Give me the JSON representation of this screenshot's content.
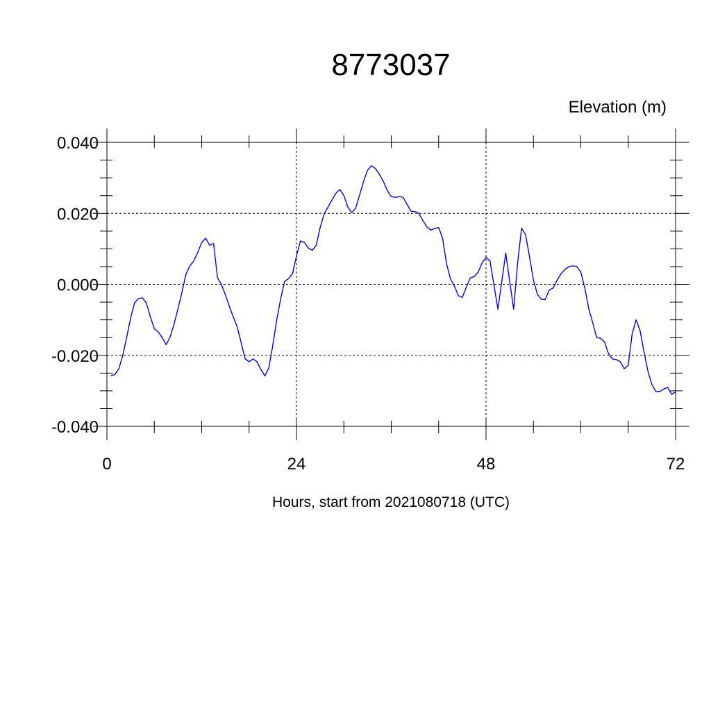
{
  "chart_data": {
    "type": "line",
    "title": "8773037",
    "ylabel": "Elevation (m)",
    "xlabel": "Hours, start from 2021080718 (UTC)",
    "xlim": [
      0,
      72
    ],
    "ylim": [
      -0.04,
      0.04
    ],
    "xticks": [
      0,
      24,
      48,
      72
    ],
    "xtick_labels": [
      "0",
      "24",
      "48",
      "72"
    ],
    "xminor_step": 6,
    "yticks": [
      0.04,
      0.02,
      0.0,
      -0.02,
      -0.04
    ],
    "ytick_labels": [
      "0.040",
      "0.020",
      "0.000",
      "-0.020",
      "-0.040"
    ],
    "yminor_step": 0.005,
    "grid": true,
    "series": [
      {
        "color": "#0000ee",
        "x": [
          0.5,
          1,
          1.5,
          2,
          2.5,
          3,
          3.5,
          4,
          4.5,
          5,
          5.5,
          6,
          6.5,
          7,
          7.5,
          8,
          8.5,
          9,
          9.5,
          10,
          10.5,
          11,
          11.5,
          12,
          12.5,
          13,
          13.5,
          14,
          14.5,
          15,
          15.5,
          16,
          16.5,
          17,
          17.5,
          18,
          18.5,
          19,
          19.5,
          20,
          20.5,
          21,
          21.5,
          22,
          22.5,
          23,
          23.5,
          24,
          24.5,
          25,
          25.5,
          26,
          26.5,
          27,
          27.5,
          28,
          28.5,
          29,
          29.5,
          30,
          30.5,
          31,
          31.5,
          32,
          32.5,
          33,
          33.5,
          34,
          34.5,
          35,
          35.5,
          36,
          36.5,
          37,
          37.5,
          38,
          38.5,
          39,
          39.5,
          40,
          40.5,
          41,
          41.5,
          42,
          42.5,
          43,
          43.5,
          44,
          44.5,
          45,
          45.5,
          46,
          46.5,
          47,
          47.5,
          48,
          48.5,
          49,
          49.5,
          50,
          50.5,
          51,
          51.5,
          52,
          52.5,
          53,
          53.5,
          54,
          54.5,
          55,
          55.5,
          56,
          56.5,
          57,
          57.5,
          58,
          58.5,
          59,
          59.5,
          60,
          60.5,
          61,
          61.5,
          62,
          62.5,
          63,
          63.5,
          64,
          64.5,
          65,
          65.5,
          66,
          66.5,
          67,
          67.5,
          68,
          68.5,
          69,
          69.5,
          70,
          70.5,
          71,
          71.5,
          72
        ],
        "y": [
          -0.0257,
          -0.0254,
          -0.0238,
          -0.02,
          -0.015,
          -0.0095,
          -0.0052,
          -0.004,
          -0.0038,
          -0.0053,
          -0.0092,
          -0.0125,
          -0.0134,
          -0.015,
          -0.017,
          -0.0148,
          -0.0112,
          -0.0068,
          -0.0022,
          0.0028,
          0.0052,
          0.0066,
          0.009,
          0.0118,
          0.013,
          0.011,
          0.0115,
          0.0018,
          0.0,
          -0.003,
          -0.0062,
          -0.0092,
          -0.012,
          -0.0165,
          -0.021,
          -0.0218,
          -0.021,
          -0.0218,
          -0.024,
          -0.0258,
          -0.0235,
          -0.0172,
          -0.01,
          -0.004,
          0.0008,
          0.0016,
          0.003,
          0.008,
          0.0122,
          0.0118,
          0.0102,
          0.0096,
          0.011,
          0.016,
          0.0198,
          0.0218,
          0.0238,
          0.0257,
          0.0267,
          0.025,
          0.0218,
          0.0202,
          0.0215,
          0.0252,
          0.029,
          0.0322,
          0.0334,
          0.0326,
          0.031,
          0.029,
          0.0264,
          0.0247,
          0.0245,
          0.0247,
          0.0245,
          0.0225,
          0.0206,
          0.0205,
          0.02,
          0.018,
          0.0162,
          0.0153,
          0.0157,
          0.016,
          0.013,
          0.0058,
          0.0015,
          -0.0005,
          -0.0032,
          -0.0037,
          -0.0008,
          0.0018,
          0.0022,
          0.0034,
          0.006,
          0.0076,
          0.0066,
          -0.0002,
          -0.007,
          0.001,
          0.0088,
          0.0008,
          -0.007,
          0.006,
          0.0158,
          0.014,
          0.0078,
          0.0012,
          -0.0028,
          -0.0042,
          -0.0043,
          -0.0016,
          -0.001,
          0.0012,
          0.003,
          0.0042,
          0.005,
          0.0052,
          0.005,
          0.0034,
          -0.001,
          -0.0068,
          -0.0108,
          -0.015,
          -0.0152,
          -0.0162,
          -0.0195,
          -0.021,
          -0.0212,
          -0.0218,
          -0.0238,
          -0.0228,
          -0.014,
          -0.01,
          -0.013,
          -0.019,
          -0.0245,
          -0.0282,
          -0.0302,
          -0.0302,
          -0.0295,
          -0.029,
          -0.031,
          -0.0303
        ]
      }
    ]
  }
}
